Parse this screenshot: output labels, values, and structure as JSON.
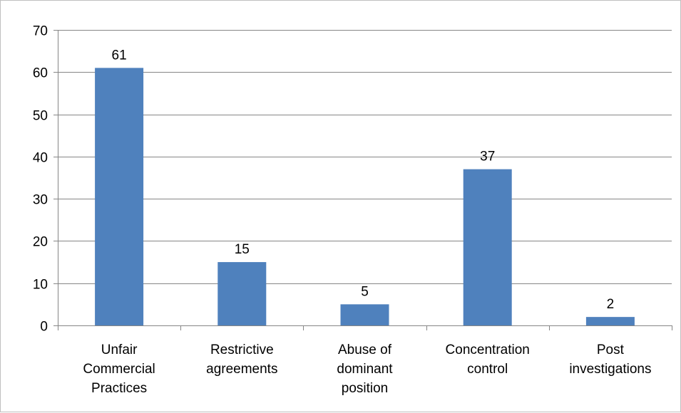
{
  "chart_data": {
    "type": "bar",
    "categories": [
      [
        "Unfair",
        "Commercial",
        "Practices"
      ],
      [
        "Restrictive",
        "agreements"
      ],
      [
        "Abuse of",
        "dominant",
        "position"
      ],
      [
        "Concentration",
        "control"
      ],
      [
        "Post",
        "investigations"
      ]
    ],
    "values": [
      61,
      15,
      5,
      37,
      2
    ],
    "data_labels": [
      "61",
      "15",
      "5",
      "37",
      "2"
    ],
    "ylim": [
      0,
      70
    ],
    "yticks": [
      0,
      10,
      20,
      30,
      40,
      50,
      60,
      70
    ],
    "grid": true,
    "legend": "none",
    "colors": {
      "bar": "#4f81bd",
      "grid": "#868686",
      "axis": "#868686"
    }
  }
}
